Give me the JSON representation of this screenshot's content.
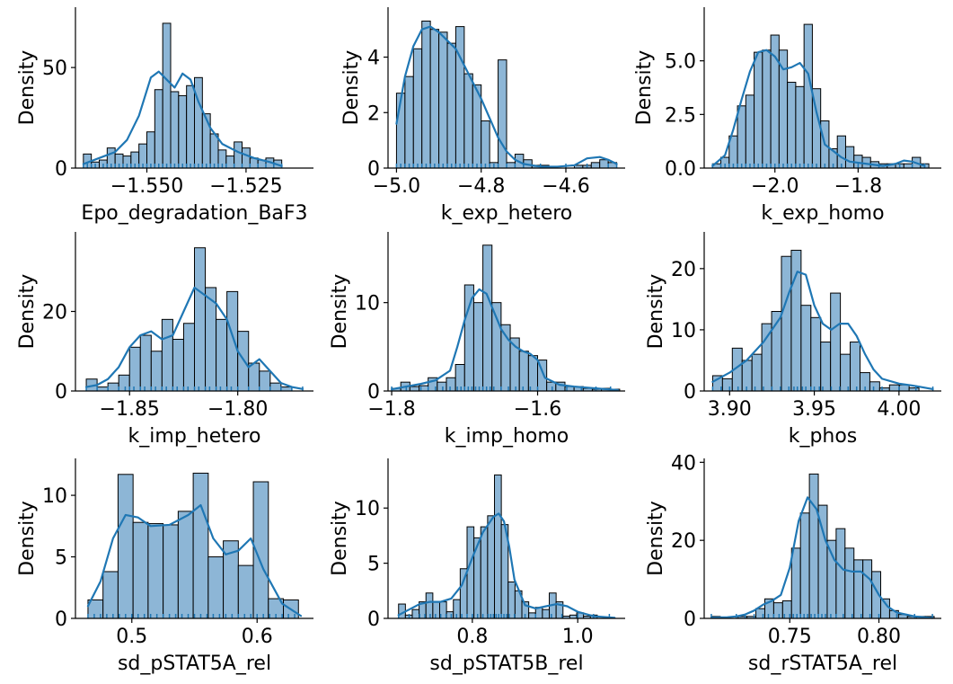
{
  "chart_data": [
    {
      "type": "bar",
      "xlabel": "Epo_degradation_BaF3",
      "ylabel": "Density",
      "xlim": [
        -1.568,
        -1.508
      ],
      "ylim": [
        0,
        80
      ],
      "xticks": [
        -1.55,
        -1.525
      ],
      "xtick_labels": [
        "−1.550",
        "−1.525"
      ],
      "yticks": [
        0,
        50
      ],
      "ytick_labels": [
        "0",
        "50"
      ],
      "bin_start": -1.566,
      "bin_width": 0.002,
      "values": [
        7,
        3,
        4,
        10,
        7,
        6,
        8,
        12,
        18,
        39,
        72,
        38,
        36,
        41,
        45,
        27,
        17,
        9,
        6,
        13,
        10,
        5,
        4,
        5,
        4
      ],
      "kde_x": [
        -1.566,
        -1.562,
        -1.558,
        -1.555,
        -1.552,
        -1.549,
        -1.547,
        -1.545,
        -1.543,
        -1.541,
        -1.539,
        -1.537,
        -1.534,
        -1.531,
        -1.527,
        -1.523,
        -1.519,
        -1.516
      ],
      "kde_y": [
        2,
        5,
        8,
        14,
        26,
        45,
        48,
        44,
        40,
        47,
        44,
        33,
        20,
        12,
        8,
        5,
        3,
        1
      ],
      "rug": [
        -1.566,
        -1.565,
        -1.564,
        -1.563,
        -1.561,
        -1.56,
        -1.559,
        -1.558,
        -1.557,
        -1.556,
        -1.555,
        -1.554,
        -1.553,
        -1.552,
        -1.551,
        -1.55,
        -1.549,
        -1.548,
        -1.547,
        -1.546,
        -1.545,
        -1.544,
        -1.543,
        -1.542,
        -1.541,
        -1.54,
        -1.539,
        -1.538,
        -1.537,
        -1.536,
        -1.535,
        -1.534,
        -1.533,
        -1.532,
        -1.531,
        -1.53,
        -1.528,
        -1.526,
        -1.524,
        -1.522,
        -1.52,
        -1.518,
        -1.516
      ]
    },
    {
      "type": "bar",
      "xlabel": "k_exp_hetero",
      "ylabel": "Density",
      "xlim": [
        -5.02,
        -4.46
      ],
      "ylim": [
        0,
        5.8
      ],
      "xticks": [
        -5.0,
        -4.8,
        -4.6
      ],
      "xtick_labels": [
        "−5.0",
        "−4.8",
        "−4.6"
      ],
      "yticks": [
        0,
        2,
        4
      ],
      "ytick_labels": [
        "0",
        "2",
        "4"
      ],
      "bin_start": -5.0,
      "bin_width": 0.02,
      "values": [
        2.7,
        3.3,
        4.3,
        5.3,
        5.0,
        4.9,
        4.5,
        5.1,
        3.4,
        3.0,
        1.7,
        0.2,
        3.9,
        0.2,
        0.5,
        0.3,
        0.1,
        0.1,
        0,
        0,
        0,
        0.1,
        0.1,
        0.2,
        0.3,
        0.2
      ],
      "kde_x": [
        -5.0,
        -4.98,
        -4.96,
        -4.94,
        -4.92,
        -4.9,
        -4.88,
        -4.86,
        -4.84,
        -4.82,
        -4.8,
        -4.78,
        -4.76,
        -4.74,
        -4.72,
        -4.7,
        -4.66,
        -4.62,
        -4.58,
        -4.55,
        -4.52,
        -4.5,
        -4.48
      ],
      "kde_y": [
        1.6,
        3.3,
        4.4,
        5.0,
        5.1,
        4.9,
        4.6,
        4.3,
        3.7,
        3.1,
        2.5,
        1.8,
        1.1,
        0.6,
        0.3,
        0.15,
        0.05,
        0.05,
        0.1,
        0.35,
        0.4,
        0.3,
        0.15
      ],
      "rug": [
        -5.0,
        -4.99,
        -4.98,
        -4.97,
        -4.96,
        -4.95,
        -4.94,
        -4.93,
        -4.92,
        -4.91,
        -4.9,
        -4.89,
        -4.88,
        -4.87,
        -4.86,
        -4.85,
        -4.84,
        -4.83,
        -4.82,
        -4.81,
        -4.8,
        -4.79,
        -4.78,
        -4.77,
        -4.76,
        -4.74,
        -4.72,
        -4.7,
        -4.66,
        -4.6,
        -4.55,
        -4.5,
        -4.48
      ]
    },
    {
      "type": "bar",
      "xlabel": "k_exp_homo",
      "ylabel": "Density",
      "xlim": [
        -2.17,
        -1.6
      ],
      "ylim": [
        0,
        7.5
      ],
      "xticks": [
        -2.0,
        -1.8
      ],
      "xtick_labels": [
        "−2.0",
        "−1.8"
      ],
      "yticks": [
        0,
        2.5,
        5.0
      ],
      "ytick_labels": [
        "0.0",
        "2.5",
        "5.0"
      ],
      "bin_start": -2.15,
      "bin_width": 0.02,
      "values": [
        0.2,
        0.5,
        1.5,
        2.9,
        3.4,
        5.4,
        5.5,
        6.2,
        5.5,
        4.0,
        3.8,
        6.7,
        3.7,
        2.2,
        0.9,
        1.5,
        1.0,
        0.6,
        0.5,
        0.3,
        0.2,
        0.2,
        0.2,
        0.2,
        0.5,
        0.2
      ],
      "kde_x": [
        -2.15,
        -2.12,
        -2.1,
        -2.08,
        -2.06,
        -2.04,
        -2.02,
        -2.0,
        -1.98,
        -1.96,
        -1.94,
        -1.92,
        -1.9,
        -1.88,
        -1.86,
        -1.84,
        -1.82,
        -1.78,
        -1.74,
        -1.71,
        -1.69,
        -1.67,
        -1.64
      ],
      "kde_y": [
        0.1,
        0.6,
        1.8,
        3.2,
        4.5,
        5.4,
        5.5,
        5.2,
        4.6,
        4.7,
        4.9,
        4.4,
        2.6,
        1.1,
        0.8,
        0.5,
        0.3,
        0.2,
        0.1,
        0.2,
        0.35,
        0.3,
        0.1
      ],
      "rug": [
        -2.15,
        -2.13,
        -2.12,
        -2.11,
        -2.1,
        -2.09,
        -2.08,
        -2.07,
        -2.06,
        -2.05,
        -2.04,
        -2.03,
        -2.02,
        -2.01,
        -2.0,
        -1.99,
        -1.98,
        -1.97,
        -1.96,
        -1.95,
        -1.94,
        -1.93,
        -1.92,
        -1.91,
        -1.9,
        -1.88,
        -1.86,
        -1.84,
        -1.8,
        -1.75,
        -1.7,
        -1.67,
        -1.64
      ]
    },
    {
      "type": "bar",
      "xlabel": "k_imp_hetero",
      "ylabel": "Density",
      "xlim": [
        -1.875,
        -1.765
      ],
      "ylim": [
        0,
        40
      ],
      "xticks": [
        -1.85,
        -1.8
      ],
      "xtick_labels": [
        "−1.85",
        "−1.80"
      ],
      "yticks": [
        0,
        20
      ],
      "ytick_labels": [
        "0",
        "20"
      ],
      "bin_start": -1.87,
      "bin_width": 0.005,
      "values": [
        3,
        1,
        2,
        4,
        11,
        14,
        10,
        18,
        13,
        17,
        36,
        26,
        18,
        25,
        15,
        7,
        5,
        2,
        1
      ],
      "kde_x": [
        -1.87,
        -1.865,
        -1.86,
        -1.855,
        -1.85,
        -1.845,
        -1.84,
        -1.835,
        -1.83,
        -1.825,
        -1.82,
        -1.815,
        -1.81,
        -1.805,
        -1.8,
        -1.795,
        -1.79,
        -1.785,
        -1.78,
        -1.775,
        -1.77
      ],
      "kde_y": [
        1,
        1.5,
        3,
        6,
        11,
        14,
        15,
        13,
        14,
        20,
        26,
        24,
        22,
        18,
        10,
        6,
        8,
        5,
        2,
        1,
        0.5
      ],
      "rug": [
        -1.87,
        -1.865,
        -1.86,
        -1.855,
        -1.852,
        -1.85,
        -1.848,
        -1.845,
        -1.843,
        -1.84,
        -1.838,
        -1.835,
        -1.833,
        -1.83,
        -1.828,
        -1.825,
        -1.823,
        -1.82,
        -1.818,
        -1.815,
        -1.813,
        -1.81,
        -1.808,
        -1.805,
        -1.803,
        -1.8,
        -1.795,
        -1.79,
        -1.785,
        -1.78,
        -1.775,
        -1.77
      ]
    },
    {
      "type": "bar",
      "xlabel": "k_imp_homo",
      "ylabel": "Density",
      "xlim": [
        -1.805,
        -1.48
      ],
      "ylim": [
        0,
        18
      ],
      "xticks": [
        -1.8,
        -1.6
      ],
      "xtick_labels": [
        "−1.8",
        "−1.6"
      ],
      "yticks": [
        0,
        10
      ],
      "ytick_labels": [
        "0",
        "10"
      ],
      "bin_start": -1.8,
      "bin_width": 0.0125,
      "values": [
        0.3,
        1,
        0.5,
        0.6,
        1.5,
        1.0,
        1.5,
        3,
        12,
        10,
        16.5,
        10,
        7.5,
        6,
        4.5,
        4,
        3.5,
        1,
        1,
        0.5,
        0.5,
        0.3,
        0.2,
        0.3,
        0.2
      ],
      "kde_x": [
        -1.8,
        -1.78,
        -1.76,
        -1.74,
        -1.72,
        -1.71,
        -1.7,
        -1.69,
        -1.68,
        -1.67,
        -1.66,
        -1.65,
        -1.64,
        -1.63,
        -1.62,
        -1.61,
        -1.6,
        -1.59,
        -1.57,
        -1.55,
        -1.52,
        -1.49
      ],
      "kde_y": [
        0.2,
        0.5,
        0.8,
        1.2,
        2.3,
        5,
        8,
        10.5,
        11.5,
        11,
        9,
        7,
        5.8,
        5,
        4.5,
        4.2,
        3.5,
        1.5,
        0.7,
        0.5,
        0.3,
        0.1
      ],
      "rug": [
        -1.8,
        -1.78,
        -1.76,
        -1.75,
        -1.74,
        -1.73,
        -1.72,
        -1.71,
        -1.705,
        -1.7,
        -1.695,
        -1.69,
        -1.685,
        -1.68,
        -1.675,
        -1.67,
        -1.665,
        -1.66,
        -1.65,
        -1.64,
        -1.63,
        -1.62,
        -1.61,
        -1.6,
        -1.58,
        -1.56,
        -1.54,
        -1.52,
        -1.5
      ]
    },
    {
      "type": "bar",
      "xlabel": "k_phos",
      "ylabel": "Density",
      "xlim": [
        3.885,
        4.025
      ],
      "ylim": [
        0,
        26
      ],
      "xticks": [
        3.9,
        3.95,
        4.0
      ],
      "xtick_labels": [
        "3.90",
        "3.95",
        "4.00"
      ],
      "yticks": [
        0,
        10,
        20
      ],
      "ytick_labels": [
        "0",
        "10",
        "20"
      ],
      "bin_start": 3.89,
      "bin_width": 0.0058,
      "values": [
        2.5,
        2,
        7,
        5,
        6,
        11,
        13,
        22,
        23,
        14,
        12,
        8,
        16,
        6,
        8,
        3,
        1.5,
        0.5,
        1,
        1,
        0.5
      ],
      "kde_x": [
        3.89,
        3.9,
        3.91,
        3.92,
        3.93,
        3.935,
        3.94,
        3.945,
        3.95,
        3.955,
        3.96,
        3.965,
        3.97,
        3.975,
        3.98,
        3.985,
        3.99,
        4.0,
        4.01,
        4.02
      ],
      "kde_y": [
        1.5,
        3,
        5,
        8,
        12,
        16,
        19.5,
        19,
        14,
        11,
        10,
        11,
        11,
        9,
        6,
        3.5,
        2,
        1.2,
        0.8,
        0.3
      ],
      "rug": [
        3.89,
        3.895,
        3.9,
        3.905,
        3.91,
        3.915,
        3.92,
        3.925,
        3.93,
        3.935,
        3.938,
        3.94,
        3.943,
        3.945,
        3.948,
        3.95,
        3.953,
        3.955,
        3.96,
        3.965,
        3.97,
        3.975,
        3.98,
        3.985,
        3.99,
        4.0,
        4.01,
        4.02
      ]
    },
    {
      "type": "bar",
      "xlabel": "sd_pSTAT5A_rel",
      "ylabel": "Density",
      "xlim": [
        0.455,
        0.645
      ],
      "ylim": [
        0,
        13
      ],
      "xticks": [
        0.5,
        0.6
      ],
      "xtick_labels": [
        "0.5",
        "0.6"
      ],
      "yticks": [
        0,
        5,
        10
      ],
      "ytick_labels": [
        "0",
        "5",
        "10"
      ],
      "bin_start": 0.465,
      "bin_width": 0.012,
      "values": [
        1.5,
        3.8,
        11.7,
        7.8,
        7.7,
        7.6,
        8.7,
        11.8,
        5,
        6.3,
        4.3,
        11.1,
        1.6,
        1.5
      ],
      "kde_x": [
        0.465,
        0.475,
        0.485,
        0.495,
        0.505,
        0.515,
        0.53,
        0.545,
        0.555,
        0.565,
        0.575,
        0.585,
        0.595,
        0.605,
        0.62,
        0.635
      ],
      "kde_y": [
        1,
        3,
        6.5,
        8.4,
        8.2,
        7.5,
        7.6,
        8.4,
        9.2,
        6.5,
        5.2,
        5.5,
        6.5,
        4,
        1.2,
        0.2
      ],
      "rug": [
        0.465,
        0.47,
        0.475,
        0.48,
        0.485,
        0.49,
        0.495,
        0.5,
        0.505,
        0.51,
        0.515,
        0.52,
        0.525,
        0.53,
        0.535,
        0.54,
        0.545,
        0.55,
        0.555,
        0.56,
        0.565,
        0.57,
        0.575,
        0.58,
        0.585,
        0.59,
        0.595,
        0.6,
        0.605,
        0.61,
        0.615,
        0.62,
        0.625,
        0.63
      ]
    },
    {
      "type": "bar",
      "xlabel": "sd_pSTAT5B_rel",
      "ylabel": "Density",
      "xlim": [
        0.64,
        1.09
      ],
      "ylim": [
        0,
        14.5
      ],
      "xticks": [
        0.8,
        1.0
      ],
      "xtick_labels": [
        "0.8",
        "1.0"
      ],
      "yticks": [
        0,
        5,
        10
      ],
      "ytick_labels": [
        "0",
        "5",
        "10"
      ],
      "bin_start": 0.66,
      "bin_width": 0.013,
      "values": [
        1.3,
        0.3,
        0.8,
        1.5,
        2.3,
        1.5,
        1.5,
        0.6,
        1.7,
        4.5,
        8.3,
        7.3,
        8.3,
        9.3,
        13,
        8.5,
        3.3,
        2.5,
        1.5,
        0.5,
        1,
        0.8,
        2.3,
        1.5,
        0.2,
        0.3,
        0.5,
        0.2,
        0.3
      ],
      "kde_x": [
        0.66,
        0.68,
        0.7,
        0.72,
        0.74,
        0.76,
        0.78,
        0.8,
        0.82,
        0.84,
        0.85,
        0.86,
        0.87,
        0.88,
        0.9,
        0.92,
        0.94,
        0.96,
        0.98,
        1.0,
        1.03,
        1.07
      ],
      "kde_y": [
        0.3,
        0.8,
        1.3,
        1.5,
        1.5,
        1.8,
        3,
        5.5,
        7.8,
        9.2,
        9.5,
        8.8,
        6.5,
        3.5,
        1.2,
        0.9,
        1.1,
        1.3,
        1.1,
        0.6,
        0.2,
        0.05
      ],
      "rug": [
        0.66,
        0.68,
        0.7,
        0.71,
        0.72,
        0.73,
        0.74,
        0.75,
        0.76,
        0.77,
        0.78,
        0.79,
        0.8,
        0.81,
        0.82,
        0.83,
        0.835,
        0.84,
        0.845,
        0.85,
        0.855,
        0.86,
        0.865,
        0.87,
        0.88,
        0.9,
        0.92,
        0.95,
        0.97,
        1.0,
        1.03,
        1.06
      ]
    },
    {
      "type": "bar",
      "xlabel": "sd_rSTAT5A_rel",
      "ylabel": "Density",
      "xlim": [
        0.702,
        0.835
      ],
      "ylim": [
        0,
        41
      ],
      "xticks": [
        0.75,
        0.8
      ],
      "xtick_labels": [
        "0.75",
        "0.80"
      ],
      "yticks": [
        0,
        20,
        40
      ],
      "ytick_labels": [
        "0",
        "20",
        "40"
      ],
      "bin_start": 0.706,
      "bin_width": 0.005,
      "values": [
        0.5,
        0,
        0,
        0.5,
        0.5,
        2.5,
        5,
        4,
        4.5,
        18,
        27,
        37,
        29,
        20,
        23,
        18,
        15,
        15,
        12,
        5,
        2,
        1,
        0.5,
        0.5,
        0.5
      ],
      "kde_x": [
        0.706,
        0.715,
        0.72,
        0.725,
        0.73,
        0.735,
        0.74,
        0.745,
        0.75,
        0.755,
        0.76,
        0.765,
        0.77,
        0.775,
        0.78,
        0.785,
        0.79,
        0.795,
        0.8,
        0.805,
        0.81,
        0.82,
        0.83
      ],
      "kde_y": [
        0.2,
        0.3,
        0.5,
        1,
        2,
        3.5,
        4.5,
        6,
        13,
        25,
        31,
        28,
        20,
        15,
        12.5,
        12,
        12,
        10,
        6,
        3,
        1.5,
        0.5,
        0.1
      ],
      "rug": [
        0.706,
        0.72,
        0.725,
        0.73,
        0.735,
        0.738,
        0.741,
        0.744,
        0.747,
        0.75,
        0.752,
        0.754,
        0.756,
        0.758,
        0.76,
        0.762,
        0.764,
        0.766,
        0.768,
        0.77,
        0.773,
        0.776,
        0.78,
        0.785,
        0.79,
        0.795,
        0.8,
        0.81,
        0.82,
        0.83
      ]
    }
  ],
  "colors": {
    "bar_fill": "#8db6d6",
    "bar_edge": "#000000",
    "kde_line": "#1f77b4",
    "rug": "#1f77b4",
    "axis": "#000000"
  }
}
